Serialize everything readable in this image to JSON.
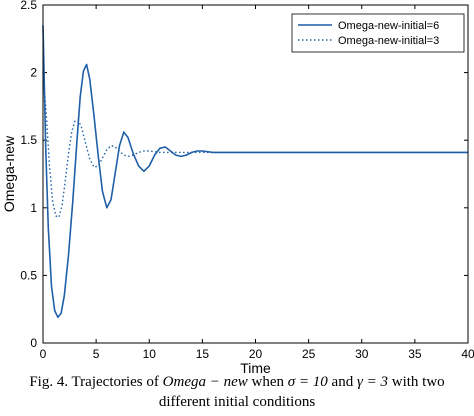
{
  "chart_data": {
    "type": "line",
    "xlabel": "Time",
    "ylabel": "Omega-new",
    "xlim": [
      0,
      40
    ],
    "ylim": [
      0,
      2.5
    ],
    "xticks": [
      "0",
      "5",
      "10",
      "15",
      "20",
      "25",
      "30",
      "35",
      "40"
    ],
    "yticks": [
      "0",
      "0.5",
      "1",
      "1.5",
      "2",
      "2.5"
    ],
    "grid": false,
    "legend_position": "top-right",
    "series": [
      {
        "name": "Omega-new-initial=6",
        "color": "#1f5fa8",
        "style": "solid",
        "points": [
          [
            0,
            2.35
          ],
          [
            0.25,
            1.45
          ],
          [
            0.5,
            0.85
          ],
          [
            0.8,
            0.42
          ],
          [
            1.1,
            0.24
          ],
          [
            1.4,
            0.19
          ],
          [
            1.7,
            0.22
          ],
          [
            2.0,
            0.35
          ],
          [
            2.4,
            0.65
          ],
          [
            2.8,
            1.05
          ],
          [
            3.2,
            1.5
          ],
          [
            3.5,
            1.82
          ],
          [
            3.8,
            2.01
          ],
          [
            4.1,
            2.06
          ],
          [
            4.4,
            1.95
          ],
          [
            4.8,
            1.68
          ],
          [
            5.2,
            1.38
          ],
          [
            5.6,
            1.12
          ],
          [
            6.0,
            1.0
          ],
          [
            6.4,
            1.06
          ],
          [
            6.8,
            1.26
          ],
          [
            7.2,
            1.46
          ],
          [
            7.6,
            1.56
          ],
          [
            8.0,
            1.52
          ],
          [
            8.5,
            1.4
          ],
          [
            9.0,
            1.31
          ],
          [
            9.5,
            1.27
          ],
          [
            10.0,
            1.31
          ],
          [
            10.5,
            1.39
          ],
          [
            11.0,
            1.44
          ],
          [
            11.5,
            1.45
          ],
          [
            12.0,
            1.42
          ],
          [
            12.5,
            1.39
          ],
          [
            13.0,
            1.38
          ],
          [
            13.5,
            1.39
          ],
          [
            14.0,
            1.41
          ],
          [
            14.5,
            1.42
          ],
          [
            15.0,
            1.42
          ],
          [
            16.0,
            1.41
          ],
          [
            18.0,
            1.41
          ],
          [
            40.0,
            1.41
          ]
        ]
      },
      {
        "name": "Omega-new-initial=3",
        "color": "#1f5fa8",
        "style": "dotted",
        "points": [
          [
            0,
            2.0
          ],
          [
            0.3,
            1.7
          ],
          [
            0.6,
            1.32
          ],
          [
            0.9,
            1.05
          ],
          [
            1.2,
            0.94
          ],
          [
            1.5,
            0.93
          ],
          [
            1.8,
            1.02
          ],
          [
            2.1,
            1.2
          ],
          [
            2.4,
            1.4
          ],
          [
            2.7,
            1.56
          ],
          [
            3.0,
            1.64
          ],
          [
            3.3,
            1.65
          ],
          [
            3.6,
            1.6
          ],
          [
            4.0,
            1.48
          ],
          [
            4.4,
            1.36
          ],
          [
            4.8,
            1.3
          ],
          [
            5.2,
            1.31
          ],
          [
            5.6,
            1.37
          ],
          [
            6.0,
            1.43
          ],
          [
            6.4,
            1.46
          ],
          [
            6.8,
            1.45
          ],
          [
            7.2,
            1.42
          ],
          [
            7.6,
            1.39
          ],
          [
            8.0,
            1.38
          ],
          [
            8.5,
            1.39
          ],
          [
            9.0,
            1.41
          ],
          [
            9.5,
            1.42
          ],
          [
            10.0,
            1.42
          ],
          [
            11.0,
            1.41
          ],
          [
            13.0,
            1.41
          ],
          [
            40.0,
            1.41
          ]
        ]
      }
    ]
  },
  "caption": {
    "line1_prefix": "Fig. 4. Trajectories of ",
    "line1_math1": "Omega − new",
    "line1_mid1": " when ",
    "line1_math2": "σ = 10",
    "line1_mid2": " and ",
    "line1_math3": "γ = 3",
    "line1_suffix": " with two",
    "line2": "different initial conditions"
  }
}
